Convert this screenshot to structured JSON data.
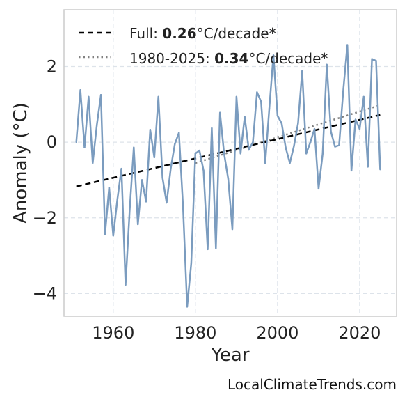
{
  "chart_data": {
    "type": "line",
    "xlabel": "Year",
    "ylabel": "Anomaly (°C)",
    "xlim": [
      1948,
      2029
    ],
    "ylim": [
      -4.6,
      3.5
    ],
    "xticks": [
      1960,
      1980,
      2000,
      2020
    ],
    "yticks": [
      -4,
      -2,
      0,
      2
    ],
    "ytick_labels": [
      "−4",
      "−2",
      "0",
      "2"
    ],
    "grid": true,
    "legend_position": "top-left",
    "colors": {
      "series": "#7b9cbf",
      "full_trend": "#000000",
      "recent_trend": "#808080"
    },
    "series": [
      {
        "x": [
          1951,
          1952,
          1953,
          1954,
          1955,
          1956,
          1957,
          1958,
          1959,
          1960,
          1961,
          1962,
          1963,
          1964,
          1965,
          1966,
          1967,
          1968,
          1969,
          1970,
          1971,
          1972,
          1973,
          1974,
          1975,
          1976,
          1977,
          1978,
          1979,
          1980,
          1981,
          1982,
          1983,
          1984,
          1985,
          1986,
          1987,
          1988,
          1989,
          1990,
          1991,
          1992,
          1993,
          1994,
          1995,
          1996,
          1997,
          1998,
          1999,
          2000,
          2001,
          2002,
          2003,
          2004,
          2005,
          2006,
          2007,
          2008,
          2009,
          2010,
          2011,
          2012,
          2013,
          2014,
          2015,
          2016,
          2017,
          2018,
          2019,
          2020,
          2021,
          2022,
          2023,
          2024,
          2025
        ],
        "values": [
          0.0,
          1.38,
          -0.14,
          1.2,
          -0.55,
          0.45,
          1.25,
          -2.43,
          -1.2,
          -2.47,
          -1.52,
          -0.7,
          -3.77,
          -1.8,
          -0.14,
          -2.17,
          -1.0,
          -1.57,
          0.33,
          -0.4,
          1.2,
          -0.94,
          -1.6,
          -0.7,
          -0.05,
          0.25,
          -1.7,
          -4.35,
          -3.2,
          -0.3,
          -0.22,
          -0.75,
          -2.83,
          0.37,
          -2.8,
          0.78,
          -0.3,
          -0.97,
          -2.3,
          1.2,
          -0.3,
          0.67,
          -0.2,
          0.0,
          1.32,
          1.07,
          -0.55,
          0.9,
          2.3,
          0.7,
          0.5,
          -0.15,
          -0.55,
          -0.1,
          0.5,
          1.88,
          -0.3,
          0.0,
          0.35,
          -1.23,
          -0.3,
          2.05,
          0.28,
          -0.12,
          -0.08,
          1.35,
          2.57,
          -0.75,
          0.6,
          0.35,
          1.2,
          -0.65,
          2.2,
          2.15,
          -0.72
        ]
      }
    ],
    "trend_full": {
      "x": [
        1951,
        2025
      ],
      "values": [
        -1.17,
        0.72
      ]
    },
    "trend_recent": {
      "x": [
        1980,
        2025
      ],
      "values": [
        -0.55,
        0.98
      ]
    },
    "legend": {
      "full": {
        "prefix": "Full: ",
        "value": "0.26",
        "suffix": "°C/decade*"
      },
      "recent": {
        "prefix": "1980-2025: ",
        "value": "0.34",
        "suffix": "°C/decade*"
      }
    }
  },
  "watermark": "LocalClimateTrends.com"
}
